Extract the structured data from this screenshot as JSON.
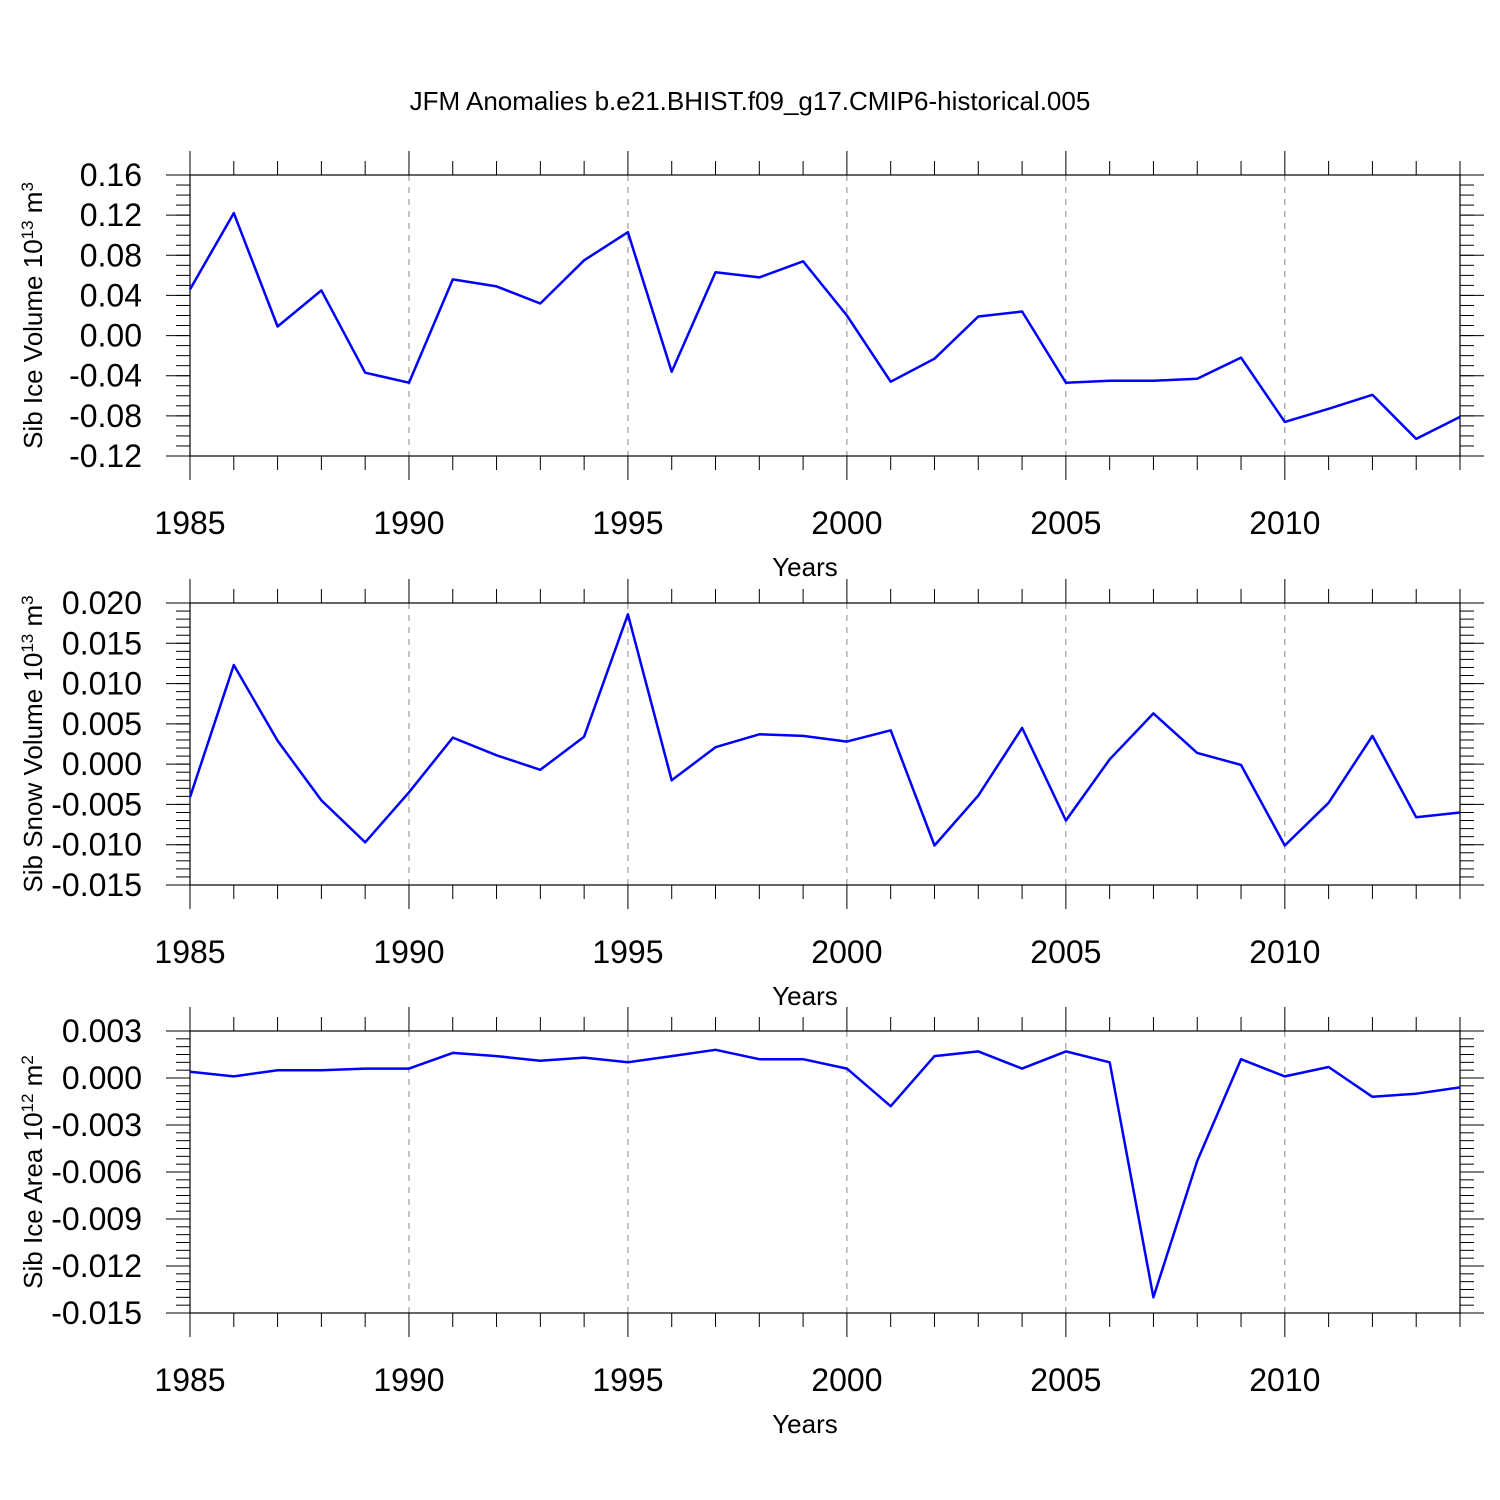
{
  "chart_data": {
    "title": "JFM Anomalies b.e21.BHIST.f09_g17.CMIP6-historical.005",
    "line_color": "#0000ff",
    "charts": [
      {
        "type": "line",
        "ylabel": "Sib Ice Volume 10",
        "yunit_exp": "13",
        "yunit_base": " m",
        "yunit_power": "3",
        "xlabel": "Years",
        "xlim": [
          1985,
          2014
        ],
        "ylim": [
          -0.12,
          0.16
        ],
        "yticks": [
          -0.12,
          -0.08,
          -0.04,
          0.0,
          0.04,
          0.08,
          0.12,
          0.16
        ],
        "yticklabels": [
          "-0.12",
          "-0.08",
          "-0.04",
          "0.00",
          "0.04",
          "0.08",
          "0.12",
          "0.16"
        ],
        "yminor_step": 0.01,
        "xticks": [
          1985,
          1990,
          1995,
          2000,
          2005,
          2010
        ],
        "xticklabels": [
          "1985",
          "1990",
          "1995",
          "2000",
          "2005",
          "2010"
        ],
        "x": [
          1985,
          1986,
          1987,
          1988,
          1989,
          1990,
          1991,
          1992,
          1993,
          1994,
          1995,
          1996,
          1997,
          1998,
          1999,
          2000,
          2001,
          2002,
          2003,
          2004,
          2005,
          2006,
          2007,
          2008,
          2009,
          2010,
          2011,
          2012,
          2013,
          2014
        ],
        "values": [
          0.046,
          0.122,
          0.009,
          0.045,
          -0.037,
          -0.047,
          0.056,
          0.049,
          0.032,
          0.075,
          0.103,
          -0.036,
          0.063,
          0.058,
          0.074,
          0.02,
          -0.046,
          -0.023,
          0.019,
          0.024,
          -0.047,
          -0.045,
          -0.045,
          -0.043,
          -0.022,
          -0.086,
          -0.073,
          -0.059,
          -0.103,
          -0.081
        ]
      },
      {
        "type": "line",
        "ylabel": "Sib Snow Volume 10",
        "yunit_exp": "13",
        "yunit_base": " m",
        "yunit_power": "3",
        "xlabel": "Years",
        "xlim": [
          1985,
          2014
        ],
        "ylim": [
          -0.015,
          0.02
        ],
        "yticks": [
          -0.015,
          -0.01,
          -0.005,
          0.0,
          0.005,
          0.01,
          0.015,
          0.02
        ],
        "yticklabels": [
          "-0.015",
          "-0.010",
          "-0.005",
          "0.000",
          "0.005",
          "0.010",
          "0.015",
          "0.020"
        ],
        "yminor_step": 0.001,
        "xticks": [
          1985,
          1990,
          1995,
          2000,
          2005,
          2010
        ],
        "xticklabels": [
          "1985",
          "1990",
          "1995",
          "2000",
          "2005",
          "2010"
        ],
        "x": [
          1985,
          1986,
          1987,
          1988,
          1989,
          1990,
          1991,
          1992,
          1993,
          1994,
          1995,
          1996,
          1997,
          1998,
          1999,
          2000,
          2001,
          2002,
          2003,
          2004,
          2005,
          2006,
          2007,
          2008,
          2009,
          2010,
          2011,
          2012,
          2013,
          2014
        ],
        "values": [
          -0.0041,
          0.0123,
          0.0029,
          -0.0045,
          -0.0097,
          -0.0035,
          0.0033,
          0.0011,
          -0.0007,
          0.0034,
          0.0186,
          -0.002,
          0.0021,
          0.0037,
          0.0035,
          0.0028,
          0.0042,
          -0.0101,
          -0.0039,
          0.0045,
          -0.007,
          0.0006,
          0.0063,
          0.0014,
          -0.0001,
          -0.0101,
          -0.0048,
          0.0035,
          -0.0066,
          -0.006
        ]
      },
      {
        "type": "line",
        "ylabel": "Sib Ice Area 10",
        "yunit_exp": "12",
        "yunit_base": " m",
        "yunit_power": "2",
        "xlabel": "Years",
        "xlim": [
          1985,
          2014
        ],
        "ylim": [
          -0.015,
          0.003
        ],
        "yticks": [
          -0.015,
          -0.012,
          -0.009,
          -0.006,
          -0.003,
          0.0,
          0.003
        ],
        "yticklabels": [
          "-0.015",
          "-0.012",
          "-0.009",
          "-0.006",
          "-0.003",
          "0.000",
          "0.003"
        ],
        "yminor_step": 0.0005,
        "xticks": [
          1985,
          1990,
          1995,
          2000,
          2005,
          2010
        ],
        "xticklabels": [
          "1985",
          "1990",
          "1995",
          "2000",
          "2005",
          "2010"
        ],
        "x": [
          1985,
          1986,
          1987,
          1988,
          1989,
          1990,
          1991,
          1992,
          1993,
          1994,
          1995,
          1996,
          1997,
          1998,
          1999,
          2000,
          2001,
          2002,
          2003,
          2004,
          2005,
          2006,
          2007,
          2008,
          2009,
          2010,
          2011,
          2012,
          2013,
          2014
        ],
        "values": [
          0.0004,
          0.0001,
          0.0005,
          0.0005,
          0.0006,
          0.0006,
          0.0016,
          0.0014,
          0.0011,
          0.0013,
          0.001,
          0.0014,
          0.0018,
          0.0012,
          0.0012,
          0.0006,
          -0.0018,
          0.0014,
          0.0017,
          0.0006,
          0.0017,
          0.001,
          -0.014,
          -0.0053,
          0.0012,
          0.0001,
          0.0007,
          -0.0012,
          -0.001,
          -0.0006
        ]
      }
    ]
  }
}
